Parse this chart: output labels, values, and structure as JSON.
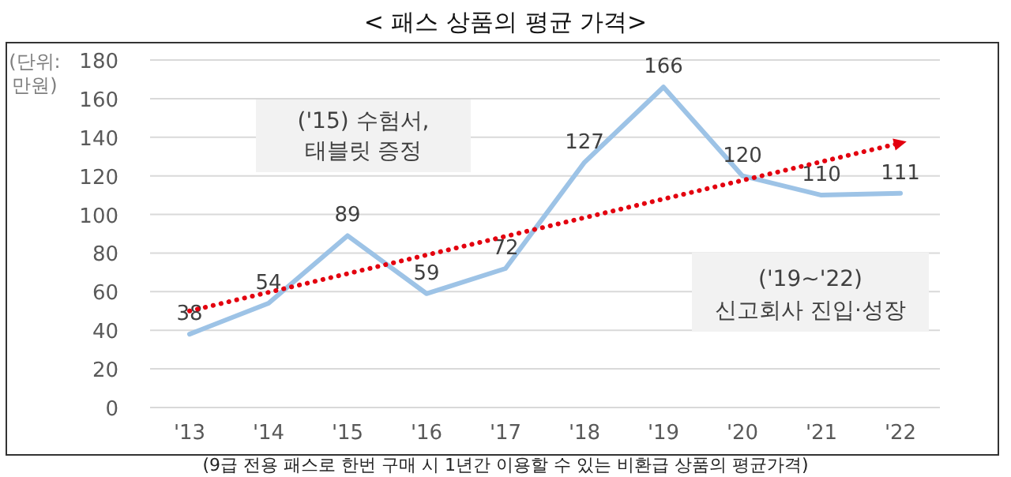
{
  "chart_data": {
    "type": "line",
    "title": "< 패스 상품의 평균 가격>",
    "ylabel": "(단위: 만원)",
    "categories": [
      "'13",
      "'14",
      "'15",
      "'16",
      "'17",
      "'18",
      "'19",
      "'20",
      "'21",
      "'22"
    ],
    "series": [
      {
        "color": "#9dc3e6",
        "values": [
          38,
          54,
          89,
          59,
          72,
          127,
          166,
          120,
          110,
          111
        ],
        "data_labels": true
      },
      {
        "type": "line",
        "color": "#e3000f",
        "line_style": "dotted",
        "x": [
          "'13",
          "'22"
        ],
        "values": [
          50,
          137
        ]
      }
    ],
    "ylim": [
      0,
      180
    ],
    "yticks": [
      0,
      20,
      40,
      60,
      80,
      100,
      120,
      140,
      160,
      180
    ],
    "grid": "y",
    "annotations": [
      "('15) 수험서, 태블릿 증정",
      "('19~'22) 신고회사 진입·성장",
      "(9급 전용 패스로 한번 구매 시 1년간 이용할 수 있는 비환급 상품의 평균가격)"
    ]
  }
}
